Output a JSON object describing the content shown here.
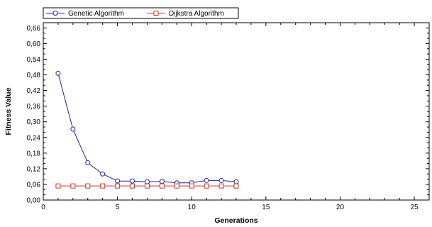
{
  "chart_data": {
    "type": "line",
    "xlabel": "Generations",
    "ylabel": "Fitness Value",
    "xlim": [
      0,
      26
    ],
    "ylim": [
      0,
      0.68
    ],
    "x_ticks": [
      0,
      5,
      10,
      15,
      20,
      25
    ],
    "y_ticks": [
      0.0,
      0.06,
      0.12,
      0.18,
      0.24,
      0.3,
      0.36,
      0.42,
      0.48,
      0.54,
      0.6,
      0.66
    ],
    "x_tick_labels": [
      "0",
      "5",
      "10",
      "15",
      "20",
      "25"
    ],
    "y_tick_labels": [
      "0,00",
      "0,06",
      "0,12",
      "0,18",
      "0,24",
      "0,30",
      "0,36",
      "0,42",
      "0,48",
      "0,54",
      "0,60",
      "0,66"
    ],
    "grid": false,
    "legend_position": "top-left",
    "series": [
      {
        "name": "Genetic Algorithm",
        "color": "#1f1fa8",
        "marker": "circle",
        "x": [
          1,
          2,
          3,
          4,
          5,
          6,
          7,
          8,
          9,
          10,
          11,
          12,
          13
        ],
        "y": [
          0.486,
          0.272,
          0.143,
          0.1,
          0.073,
          0.073,
          0.07,
          0.071,
          0.066,
          0.066,
          0.075,
          0.075,
          0.07
        ]
      },
      {
        "name": "Dijkstra Algorithm",
        "color": "#c0392b",
        "marker": "square",
        "x": [
          1,
          2,
          3,
          4,
          5,
          6,
          7,
          8,
          9,
          10,
          11,
          12,
          13
        ],
        "y": [
          0.054,
          0.054,
          0.054,
          0.054,
          0.054,
          0.054,
          0.054,
          0.054,
          0.054,
          0.054,
          0.054,
          0.054,
          0.054
        ]
      }
    ]
  }
}
